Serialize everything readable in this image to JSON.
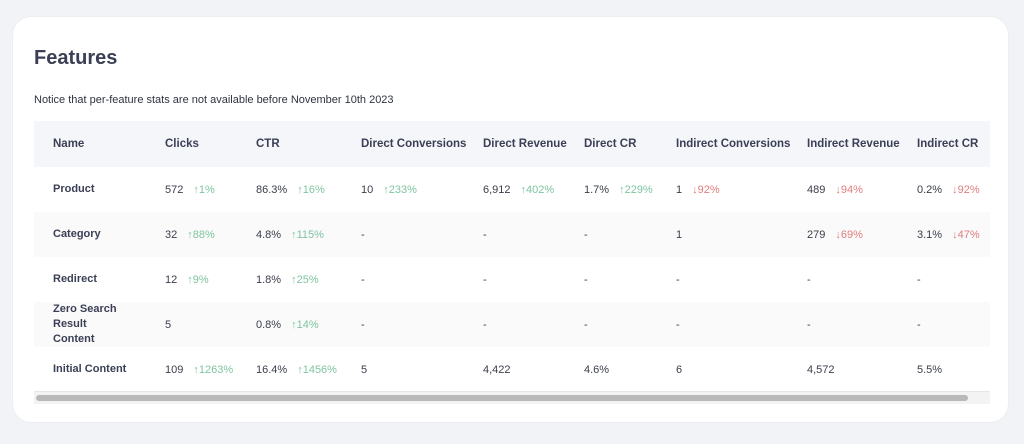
{
  "title": "Features",
  "notice": "Notice that per-feature stats are not available before November 10th 2023",
  "colors": {
    "up": "#7fc4a0",
    "down": "#e07c7c"
  },
  "columns": [
    "Name",
    "Clicks",
    "CTR",
    "Direct Conversions",
    "Direct Revenue",
    "Direct CR",
    "Indirect Conversions",
    "Indirect Revenue",
    "Indirect CR"
  ],
  "rows": [
    {
      "name": "Product",
      "cells": [
        {
          "v": "572",
          "d": "↑1%",
          "dir": "up"
        },
        {
          "v": "86.3%",
          "d": "↑16%",
          "dir": "up"
        },
        {
          "v": "10",
          "d": "↑233%",
          "dir": "up"
        },
        {
          "v": "6,912",
          "d": "↑402%",
          "dir": "up"
        },
        {
          "v": "1.7%",
          "d": "↑229%",
          "dir": "up"
        },
        {
          "v": "1",
          "d": "↓92%",
          "dir": "down"
        },
        {
          "v": "489",
          "d": "↓94%",
          "dir": "down"
        },
        {
          "v": "0.2%",
          "d": "↓92%",
          "dir": "down"
        }
      ]
    },
    {
      "name": "Category",
      "cells": [
        {
          "v": "32",
          "d": "↑88%",
          "dir": "up"
        },
        {
          "v": "4.8%",
          "d": "↑115%",
          "dir": "up"
        },
        {
          "v": "-"
        },
        {
          "v": "-"
        },
        {
          "v": "-"
        },
        {
          "v": "1"
        },
        {
          "v": "279",
          "d": "↓69%",
          "dir": "down"
        },
        {
          "v": "3.1%",
          "d": "↓47%",
          "dir": "down"
        }
      ]
    },
    {
      "name": "Redirect",
      "cells": [
        {
          "v": "12",
          "d": "↑9%",
          "dir": "up"
        },
        {
          "v": "1.8%",
          "d": "↑25%",
          "dir": "up"
        },
        {
          "v": "-"
        },
        {
          "v": "-"
        },
        {
          "v": "-"
        },
        {
          "v": "-"
        },
        {
          "v": "-"
        },
        {
          "v": "-"
        }
      ]
    },
    {
      "name": "Zero Search Result Content",
      "cells": [
        {
          "v": "5"
        },
        {
          "v": "0.8%",
          "d": "↑14%",
          "dir": "up"
        },
        {
          "v": "-"
        },
        {
          "v": "-"
        },
        {
          "v": "-"
        },
        {
          "v": "-"
        },
        {
          "v": "-"
        },
        {
          "v": "-"
        }
      ]
    },
    {
      "name": "Initial Content",
      "cells": [
        {
          "v": "109",
          "d": "↑1263%",
          "dir": "up"
        },
        {
          "v": "16.4%",
          "d": "↑1456%",
          "dir": "up"
        },
        {
          "v": "5"
        },
        {
          "v": "4,422"
        },
        {
          "v": "4.6%"
        },
        {
          "v": "6"
        },
        {
          "v": "4,572"
        },
        {
          "v": "5.5%"
        }
      ]
    }
  ]
}
